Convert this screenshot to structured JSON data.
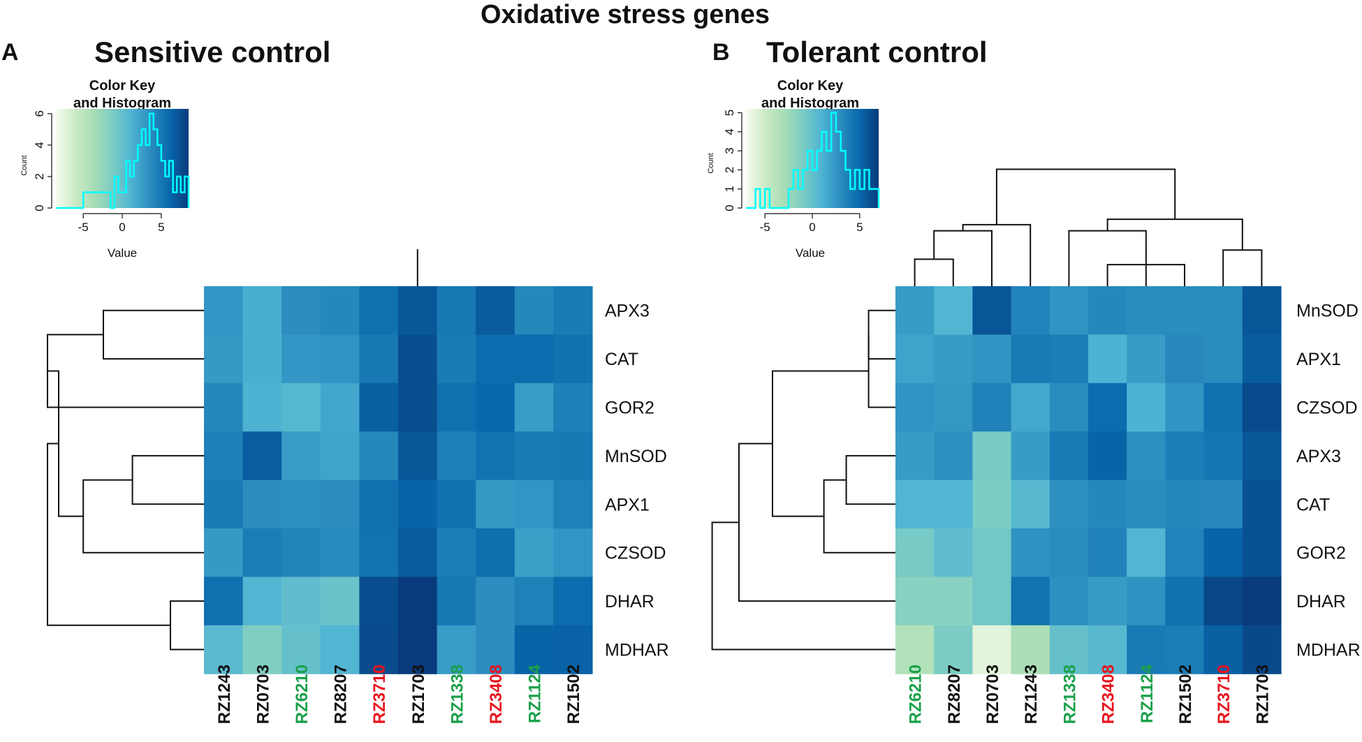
{
  "figure_title": "Oxidative stress genes",
  "colors": {
    "label_default": "#111111",
    "label_green": "#1aa04a",
    "label_red": "#e8141e",
    "histogram_line": "#00ffff",
    "scale": [
      "#f7fcf0",
      "#ccebc5",
      "#a8ddb5",
      "#7bccc4",
      "#4eb3d3",
      "#2b8cbe",
      "#0868ac",
      "#083b7b"
    ]
  },
  "chart_data": [
    {
      "type": "heatmap",
      "panel_letter": "A",
      "title": "Sensitive control",
      "color_key": {
        "title_line1": "Color Key",
        "title_line2": "and Histogram",
        "xlabel": "Value",
        "ylabel": "Count",
        "x_ticks": [
          "-5",
          "0",
          "5"
        ],
        "x_tick_values": [
          -5,
          0,
          5
        ],
        "y_ticks": [
          "0",
          "2",
          "4",
          "6"
        ],
        "y_tick_values": [
          0,
          2,
          4,
          6
        ],
        "xlim": [
          -8.5,
          8.5
        ],
        "ylim": [
          0,
          6.3
        ],
        "histogram_bins": [
          -8.5,
          -6.5,
          -5,
          -2.5,
          -1.5,
          -1,
          -0.5,
          0,
          0.5,
          1,
          1.5,
          2,
          2.5,
          3,
          3.5,
          4,
          4.5,
          5,
          5.5,
          6,
          6.5,
          7,
          7.5,
          8,
          8.5
        ],
        "histogram_counts": [
          0,
          0,
          1,
          1,
          0,
          2,
          1,
          1,
          3,
          2,
          3,
          4,
          5,
          4,
          6,
          5,
          4,
          3,
          2,
          3,
          1,
          2,
          1,
          2
        ]
      },
      "columns": [
        {
          "label": "RZ1243",
          "color": "black"
        },
        {
          "label": "RZ0703",
          "color": "black"
        },
        {
          "label": "RZ6210",
          "color": "green"
        },
        {
          "label": "RZ8207",
          "color": "black"
        },
        {
          "label": "RZ3710",
          "color": "red"
        },
        {
          "label": "RZ1703",
          "color": "black"
        },
        {
          "label": "RZ1338",
          "color": "green"
        },
        {
          "label": "RZ3408",
          "color": "red"
        },
        {
          "label": "RZ1124",
          "color": "green"
        },
        {
          "label": "RZ1502",
          "color": "black"
        }
      ],
      "rows": [
        "APX3",
        "CAT",
        "GOR2",
        "MnSOD",
        "APX1",
        "CZSOD",
        "DHAR",
        "MDHAR"
      ],
      "values": [
        [
          3.0,
          1.5,
          3.6,
          4.0,
          5.5,
          7.0,
          5.0,
          6.8,
          4.0,
          4.8
        ],
        [
          2.8,
          1.5,
          3.0,
          3.2,
          5.0,
          7.5,
          4.8,
          5.8,
          5.8,
          5.4
        ],
        [
          4.0,
          1.2,
          0.8,
          2.0,
          6.5,
          7.5,
          5.5,
          6.0,
          2.6,
          4.5
        ],
        [
          4.5,
          6.6,
          2.6,
          2.2,
          4.0,
          7.0,
          4.5,
          5.3,
          4.8,
          4.9
        ],
        [
          4.8,
          3.6,
          3.4,
          3.6,
          5.5,
          6.3,
          5.4,
          2.9,
          3.1,
          4.4
        ],
        [
          2.8,
          4.7,
          4.2,
          3.8,
          5.3,
          6.8,
          4.6,
          5.6,
          2.4,
          3.1
        ],
        [
          5.5,
          1.0,
          0.2,
          -0.3,
          7.5,
          8.5,
          5.0,
          3.6,
          4.4,
          5.8
        ],
        [
          0.5,
          -1.5,
          0.0,
          1.0,
          7.6,
          8.5,
          2.6,
          3.6,
          6.3,
          6.4
        ]
      ],
      "value_range": [
        -8.5,
        8.5
      ]
    },
    {
      "type": "heatmap",
      "panel_letter": "B",
      "title": "Tolerant control",
      "color_key": {
        "title_line1": "Color Key",
        "title_line2": "and Histogram",
        "xlabel": "Value",
        "ylabel": "Count",
        "x_ticks": [
          "-5",
          "0",
          "5"
        ],
        "x_tick_values": [
          -5,
          0,
          5
        ],
        "y_ticks": [
          "0",
          "1",
          "2",
          "3",
          "4",
          "5"
        ],
        "y_tick_values": [
          0,
          1,
          2,
          3,
          4,
          5
        ],
        "xlim": [
          -7,
          7
        ],
        "ylim": [
          0,
          5.2
        ],
        "histogram_bins": [
          -7,
          -6,
          -5.5,
          -5,
          -4.5,
          -2.5,
          -2,
          -1.5,
          -1,
          -0.5,
          0,
          0.5,
          1,
          1.5,
          2,
          2.5,
          3,
          3.5,
          4,
          4.5,
          5,
          5.5,
          6,
          6.5,
          7
        ],
        "histogram_counts": [
          0,
          1,
          0,
          1,
          0,
          1,
          2,
          1,
          2,
          3,
          2,
          3,
          4,
          3,
          5,
          4,
          3,
          2,
          1,
          2,
          1,
          2,
          1,
          1
        ]
      },
      "columns": [
        {
          "label": "RZ6210",
          "color": "green"
        },
        {
          "label": "RZ8207",
          "color": "black"
        },
        {
          "label": "RZ0703",
          "color": "black"
        },
        {
          "label": "RZ1243",
          "color": "black"
        },
        {
          "label": "RZ1338",
          "color": "green"
        },
        {
          "label": "RZ3408",
          "color": "red"
        },
        {
          "label": "RZ1124",
          "color": "green"
        },
        {
          "label": "RZ1502",
          "color": "black"
        },
        {
          "label": "RZ3710",
          "color": "red"
        },
        {
          "label": "RZ1703",
          "color": "black"
        }
      ],
      "rows": [
        "MnSOD",
        "APX1",
        "CZSOD",
        "APX3",
        "CAT",
        "GOR2",
        "DHAR",
        "MDHAR"
      ],
      "values": [
        [
          2.2,
          0.8,
          5.8,
          3.5,
          2.6,
          3.3,
          3.0,
          3.0,
          3.0,
          5.8
        ],
        [
          1.8,
          2.2,
          2.6,
          4.0,
          3.8,
          1.0,
          2.2,
          3.2,
          3.0,
          5.5
        ],
        [
          2.6,
          2.4,
          3.6,
          1.6,
          3.0,
          4.8,
          1.0,
          2.6,
          4.5,
          6.3
        ],
        [
          2.2,
          2.8,
          -0.8,
          2.2,
          4.0,
          5.2,
          2.8,
          3.8,
          4.2,
          5.8
        ],
        [
          0.8,
          0.8,
          -1.0,
          0.6,
          2.8,
          3.3,
          3.0,
          3.3,
          3.2,
          6.0
        ],
        [
          -0.8,
          0.2,
          -0.6,
          2.7,
          3.0,
          3.6,
          0.8,
          3.5,
          5.2,
          6.0
        ],
        [
          -1.6,
          -1.6,
          -0.6,
          4.4,
          2.8,
          2.2,
          2.7,
          4.5,
          6.5,
          7.0
        ],
        [
          -3.5,
          -1.0,
          -6.0,
          -3.2,
          0.0,
          0.6,
          4.0,
          3.9,
          5.4,
          6.4
        ]
      ],
      "value_range": [
        -7,
        7
      ]
    }
  ]
}
